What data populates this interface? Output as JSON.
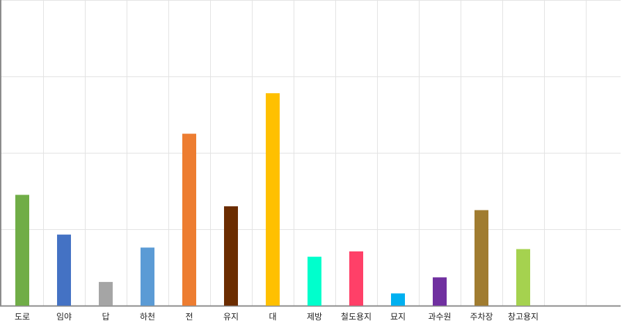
{
  "chart_data": {
    "type": "bar",
    "title": "",
    "xlabel": "",
    "ylabel": "",
    "ylim": [
      0,
      400
    ],
    "grid": true,
    "legend": "none",
    "categories": [
      "도로",
      "임야",
      "답",
      "하천",
      "전",
      "유지",
      "대",
      "제방",
      "철도용지",
      "묘지",
      "과수원",
      "주차장",
      "창고용지"
    ],
    "values": [
      145,
      93,
      31,
      76,
      225,
      130,
      278,
      64,
      71,
      16,
      37,
      125,
      74
    ],
    "colors": [
      "#70AD47",
      "#4472C4",
      "#A5A5A5",
      "#5B9BD5",
      "#ED7D31",
      "#6B2C00",
      "#FFC000",
      "#00FFCC",
      "#FF4068",
      "#00B0F0",
      "#7030A0",
      "#A07C30",
      "#A5D24F"
    ]
  }
}
